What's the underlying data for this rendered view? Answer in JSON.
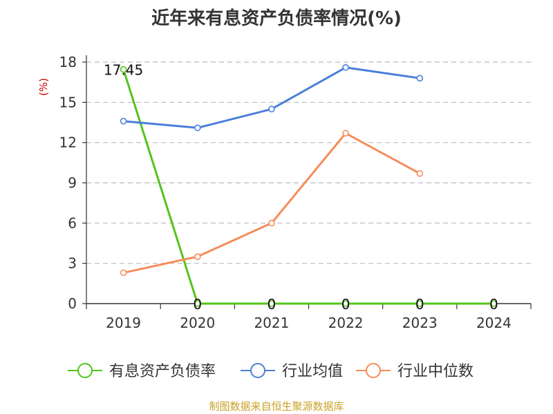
{
  "chart_data": {
    "type": "line",
    "title": "近年来有息资产负债率情况(%)",
    "ylabel": "(%)",
    "categories": [
      "2019",
      "2020",
      "2021",
      "2022",
      "2023",
      "2024"
    ],
    "ylim": [
      0,
      18
    ],
    "yticks": [
      0,
      3,
      6,
      9,
      12,
      15,
      18
    ],
    "grid": true,
    "legend_position": "bottom",
    "series": [
      {
        "name": "有息资产负债率",
        "color": "#52c41a",
        "values": [
          17.45,
          0,
          0,
          0,
          0,
          0
        ],
        "labels": [
          "17.45",
          "0",
          "0",
          "0",
          "0",
          "0"
        ]
      },
      {
        "name": "行业均值",
        "color": "#4a7fdb",
        "values": [
          13.6,
          13.1,
          14.5,
          17.6,
          16.8,
          null
        ]
      },
      {
        "name": "行业中位数",
        "color": "#f58c5a",
        "values": [
          2.3,
          3.5,
          6.0,
          12.7,
          9.7,
          null
        ]
      }
    ]
  },
  "source": "制图数据来自恒生聚源数据库"
}
